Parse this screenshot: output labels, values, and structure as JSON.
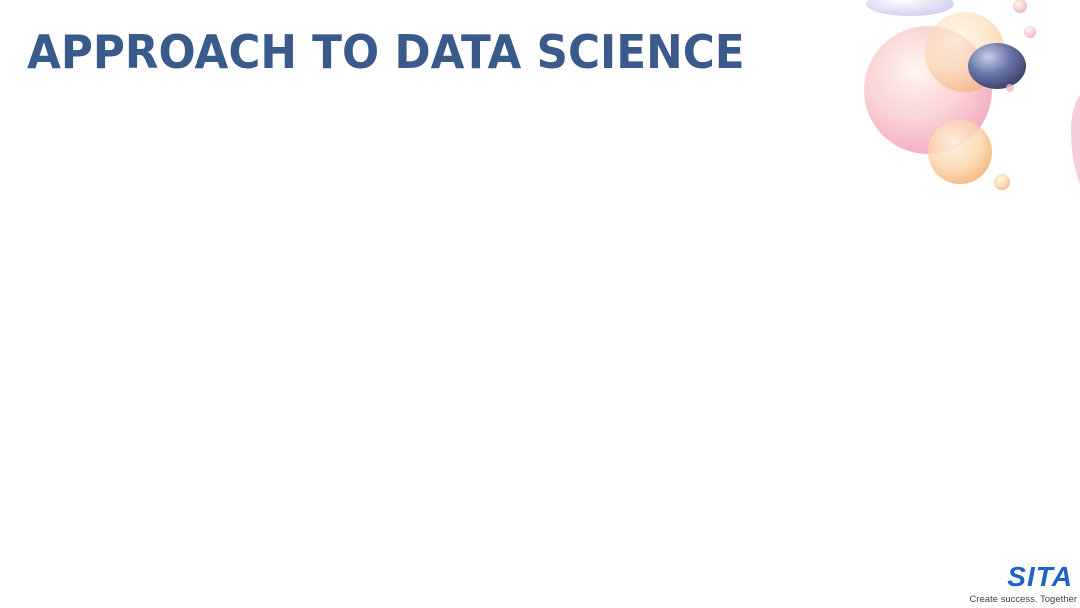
{
  "slide": {
    "title": "APPROACH TO DATA SCIENCE"
  },
  "logo": {
    "wordmark": "SITA",
    "tagline": "Create success. Together"
  },
  "colors": {
    "title": "#3a5a8c",
    "logo": "#1e63c6"
  }
}
